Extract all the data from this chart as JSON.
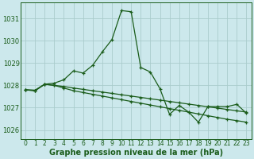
{
  "title": "Graphe pression niveau de la mer (hPa)",
  "bg_color": "#cce8ec",
  "grid_color": "#aacccc",
  "line_color": "#1a5c1a",
  "xlim": [
    -0.5,
    23.5
  ],
  "ylim": [
    1025.6,
    1031.7
  ],
  "yticks": [
    1026,
    1027,
    1028,
    1029,
    1030,
    1031
  ],
  "xticks": [
    0,
    1,
    2,
    3,
    4,
    5,
    6,
    7,
    8,
    9,
    10,
    11,
    12,
    13,
    14,
    15,
    16,
    17,
    18,
    19,
    20,
    21,
    22,
    23
  ],
  "series": [
    [
      1027.8,
      1027.75,
      1028.05,
      1028.1,
      1028.25,
      1028.65,
      1028.55,
      1028.9,
      1029.5,
      1030.05,
      1031.35,
      1031.3,
      1028.8,
      1028.6,
      1027.85,
      1026.7,
      1027.1,
      1026.8,
      1026.35,
      1027.05,
      1027.05,
      1027.05,
      1027.15,
      1026.75
    ],
    [
      1027.8,
      1027.78,
      1028.05,
      1028.0,
      1027.95,
      1027.88,
      1027.82,
      1027.76,
      1027.7,
      1027.64,
      1027.58,
      1027.52,
      1027.46,
      1027.4,
      1027.34,
      1027.28,
      1027.22,
      1027.16,
      1027.1,
      1027.04,
      1026.98,
      1026.92,
      1026.86,
      1026.8
    ],
    [
      1027.8,
      1027.78,
      1028.05,
      1028.0,
      1027.88,
      1027.76,
      1027.68,
      1027.6,
      1027.52,
      1027.44,
      1027.36,
      1027.28,
      1027.2,
      1027.12,
      1027.04,
      1026.96,
      1026.88,
      1026.8,
      1026.72,
      1026.64,
      1026.56,
      1026.48,
      1026.42,
      1026.35
    ]
  ],
  "ylabel_fontsize": 6,
  "xlabel_fontsize": 7,
  "tick_fontsize": 5.5,
  "linewidth": 0.9,
  "markersize": 3.5
}
